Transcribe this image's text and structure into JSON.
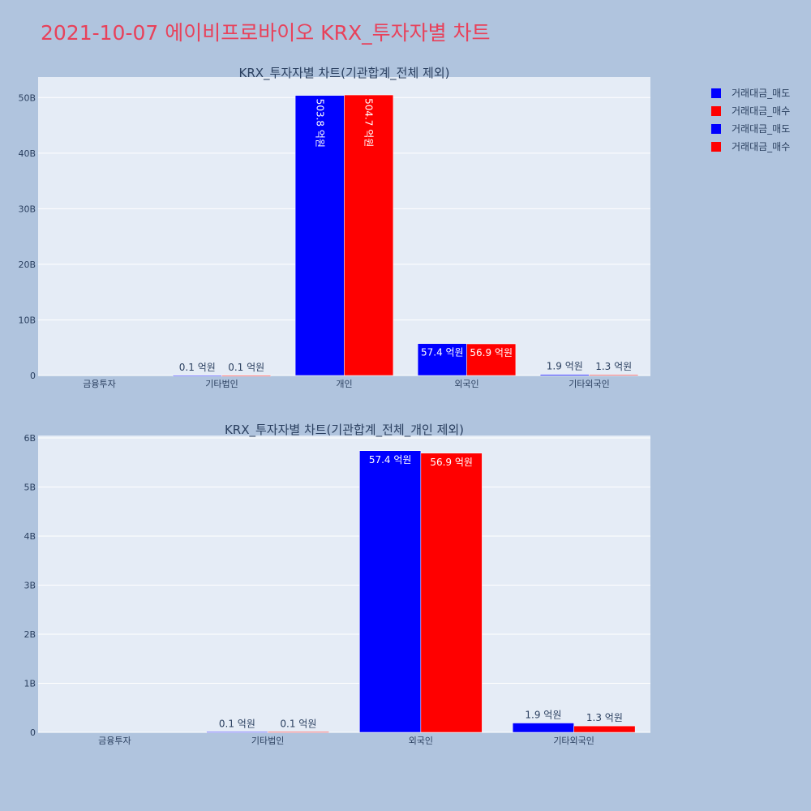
{
  "page_title": "2021-10-07 에이비프로바이오 KRX_투자자별 차트",
  "legend": [
    {
      "label": "거래대금_매도",
      "color": "#0000ff"
    },
    {
      "label": "거래대금_매수",
      "color": "#ff0000"
    },
    {
      "label": "거래대금_매도",
      "color": "#0000ff"
    },
    {
      "label": "거래대금_매수",
      "color": "#ff0000"
    }
  ],
  "chart_data": [
    {
      "type": "bar",
      "title": "KRX_투자자별 차트(기관합계_전체 제외)",
      "categories": [
        "금융투자",
        "기타법인",
        "개인",
        "외국인",
        "기타외국인"
      ],
      "series": [
        {
          "name": "거래대금_매도",
          "color": "#0000ff",
          "values": [
            0,
            10000000,
            50380000000,
            5740000000,
            190000000
          ],
          "labels": [
            "",
            "0.1 억원",
            "503.8 억원",
            "57.4 억원",
            "1.9 억원"
          ]
        },
        {
          "name": "거래대금_매수",
          "color": "#ff0000",
          "values": [
            0,
            10000000,
            50470000000,
            5690000000,
            130000000
          ],
          "labels": [
            "",
            "0.1 억원",
            "504.7 억원",
            "56.9 억원",
            "1.3 억원"
          ]
        }
      ],
      "yticks": [
        0,
        10000000000,
        20000000000,
        30000000000,
        40000000000,
        50000000000
      ],
      "ytick_labels": [
        "0",
        "10B",
        "20B",
        "30B",
        "40B",
        "50B"
      ],
      "ylim": [
        0,
        53690000000
      ],
      "grid": true
    },
    {
      "type": "bar",
      "title": "KRX_투자자별 차트(기관합계_전체_개인 제외)",
      "categories": [
        "금융투자",
        "기타법인",
        "외국인",
        "기타외국인"
      ],
      "series": [
        {
          "name": "거래대금_매도",
          "color": "#0000ff",
          "values": [
            0,
            10000000,
            5740000000,
            190000000
          ],
          "labels": [
            "",
            "0.1 억원",
            "57.4 억원",
            "1.9 억원"
          ]
        },
        {
          "name": "거래대금_매수",
          "color": "#ff0000",
          "values": [
            0,
            10000000,
            5690000000,
            130000000
          ],
          "labels": [
            "",
            "0.1 억원",
            "56.9 억원",
            "1.3 억원"
          ]
        }
      ],
      "yticks": [
        0,
        1000000000,
        2000000000,
        3000000000,
        4000000000,
        5000000000,
        6000000000
      ],
      "ytick_labels": [
        "0",
        "1B",
        "2B",
        "3B",
        "4B",
        "5B",
        "6B"
      ],
      "ylim": [
        0,
        6050000000
      ],
      "grid": true
    }
  ]
}
